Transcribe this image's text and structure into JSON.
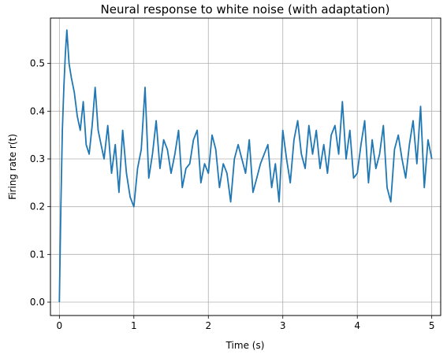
{
  "chart_data": {
    "type": "line",
    "title": "Neural response to white noise (with adaptation)",
    "xlabel": "Time (s)",
    "ylabel": "Firing rate r(t)",
    "xlim": [
      -0.12,
      5.12
    ],
    "ylim": [
      -0.028,
      0.595
    ],
    "grid": true,
    "xticks": [
      {
        "value": 0,
        "label": "0"
      },
      {
        "value": 1,
        "label": "1"
      },
      {
        "value": 2,
        "label": "2"
      },
      {
        "value": 3,
        "label": "3"
      },
      {
        "value": 4,
        "label": "4"
      },
      {
        "value": 5,
        "label": "5"
      }
    ],
    "yticks": [
      {
        "value": 0.0,
        "label": "0.0"
      },
      {
        "value": 0.1,
        "label": "0.1"
      },
      {
        "value": 0.2,
        "label": "0.2"
      },
      {
        "value": 0.3,
        "label": "0.3"
      },
      {
        "value": 0.4,
        "label": "0.4"
      },
      {
        "value": 0.5,
        "label": "0.5"
      }
    ],
    "series": [
      {
        "color": "#1f77b4",
        "x": [
          0.0,
          0.02,
          0.04,
          0.06,
          0.08,
          0.1,
          0.13,
          0.16,
          0.2,
          0.24,
          0.28,
          0.32,
          0.36,
          0.4,
          0.44,
          0.48,
          0.52,
          0.56,
          0.6,
          0.65,
          0.7,
          0.75,
          0.8,
          0.85,
          0.9,
          0.95,
          1.0,
          1.05,
          1.1,
          1.15,
          1.2,
          1.25,
          1.3,
          1.35,
          1.4,
          1.45,
          1.5,
          1.55,
          1.6,
          1.65,
          1.7,
          1.75,
          1.8,
          1.85,
          1.9,
          1.95,
          2.0,
          2.05,
          2.1,
          2.15,
          2.2,
          2.25,
          2.3,
          2.35,
          2.4,
          2.45,
          2.5,
          2.55,
          2.6,
          2.65,
          2.7,
          2.75,
          2.8,
          2.85,
          2.9,
          2.95,
          3.0,
          3.05,
          3.1,
          3.15,
          3.2,
          3.25,
          3.3,
          3.35,
          3.4,
          3.45,
          3.5,
          3.55,
          3.6,
          3.65,
          3.7,
          3.75,
          3.8,
          3.85,
          3.9,
          3.95,
          4.0,
          4.05,
          4.1,
          4.15,
          4.2,
          4.25,
          4.3,
          4.35,
          4.4,
          4.45,
          4.5,
          4.55,
          4.6,
          4.65,
          4.7,
          4.75,
          4.8,
          4.85,
          4.9,
          4.95,
          5.0
        ],
        "y": [
          0.0,
          0.2,
          0.36,
          0.45,
          0.52,
          0.57,
          0.5,
          0.47,
          0.44,
          0.39,
          0.36,
          0.42,
          0.33,
          0.31,
          0.37,
          0.45,
          0.36,
          0.33,
          0.3,
          0.37,
          0.27,
          0.33,
          0.23,
          0.36,
          0.27,
          0.22,
          0.2,
          0.28,
          0.32,
          0.45,
          0.26,
          0.31,
          0.38,
          0.28,
          0.34,
          0.32,
          0.27,
          0.31,
          0.36,
          0.24,
          0.28,
          0.29,
          0.34,
          0.36,
          0.25,
          0.29,
          0.27,
          0.35,
          0.32,
          0.24,
          0.29,
          0.27,
          0.21,
          0.3,
          0.33,
          0.3,
          0.27,
          0.34,
          0.23,
          0.26,
          0.29,
          0.31,
          0.33,
          0.24,
          0.29,
          0.21,
          0.36,
          0.3,
          0.25,
          0.34,
          0.38,
          0.31,
          0.28,
          0.37,
          0.31,
          0.36,
          0.28,
          0.33,
          0.27,
          0.35,
          0.37,
          0.31,
          0.42,
          0.3,
          0.36,
          0.26,
          0.27,
          0.33,
          0.38,
          0.25,
          0.34,
          0.28,
          0.31,
          0.37,
          0.24,
          0.21,
          0.32,
          0.35,
          0.3,
          0.26,
          0.33,
          0.38,
          0.29,
          0.41,
          0.24,
          0.34,
          0.3
        ]
      }
    ]
  }
}
